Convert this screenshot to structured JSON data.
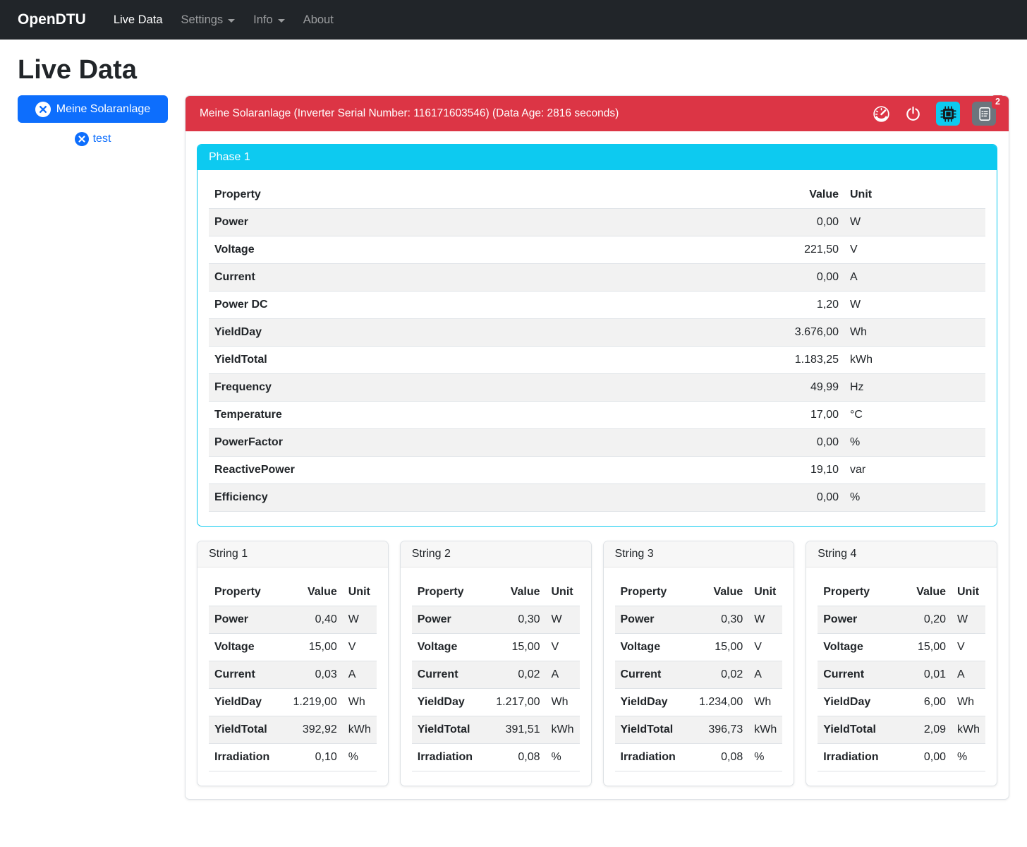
{
  "navbar": {
    "brand": "OpenDTU",
    "items": [
      {
        "label": "Live Data",
        "active": true,
        "dropdown": false
      },
      {
        "label": "Settings",
        "active": false,
        "dropdown": true
      },
      {
        "label": "Info",
        "active": false,
        "dropdown": true
      },
      {
        "label": "About",
        "active": false,
        "dropdown": false
      }
    ]
  },
  "page_title": "Live Data",
  "sidebar": {
    "inverters": [
      {
        "label": "Meine Solaranlage"
      },
      {
        "label": "test"
      }
    ]
  },
  "inverter": {
    "header": "Meine Solaranlage (Inverter Serial Number: 116171603546) (Data Age: 2816 seconds)",
    "event_count": "2"
  },
  "table_columns": {
    "property": "Property",
    "value": "Value",
    "unit": "Unit"
  },
  "phase": {
    "title": "Phase 1",
    "rows": [
      {
        "property": "Power",
        "value": "0,00",
        "unit": "W"
      },
      {
        "property": "Voltage",
        "value": "221,50",
        "unit": "V"
      },
      {
        "property": "Current",
        "value": "0,00",
        "unit": "A"
      },
      {
        "property": "Power DC",
        "value": "1,20",
        "unit": "W"
      },
      {
        "property": "YieldDay",
        "value": "3.676,00",
        "unit": "Wh"
      },
      {
        "property": "YieldTotal",
        "value": "1.183,25",
        "unit": "kWh"
      },
      {
        "property": "Frequency",
        "value": "49,99",
        "unit": "Hz"
      },
      {
        "property": "Temperature",
        "value": "17,00",
        "unit": "°C"
      },
      {
        "property": "PowerFactor",
        "value": "0,00",
        "unit": "%"
      },
      {
        "property": "ReactivePower",
        "value": "19,10",
        "unit": "var"
      },
      {
        "property": "Efficiency",
        "value": "0,00",
        "unit": "%"
      }
    ]
  },
  "strings": [
    {
      "title": "String 1",
      "rows": [
        {
          "property": "Power",
          "value": "0,40",
          "unit": "W"
        },
        {
          "property": "Voltage",
          "value": "15,00",
          "unit": "V"
        },
        {
          "property": "Current",
          "value": "0,03",
          "unit": "A"
        },
        {
          "property": "YieldDay",
          "value": "1.219,00",
          "unit": "Wh"
        },
        {
          "property": "YieldTotal",
          "value": "392,92",
          "unit": "kWh"
        },
        {
          "property": "Irradiation",
          "value": "0,10",
          "unit": "%"
        }
      ]
    },
    {
      "title": "String 2",
      "rows": [
        {
          "property": "Power",
          "value": "0,30",
          "unit": "W"
        },
        {
          "property": "Voltage",
          "value": "15,00",
          "unit": "V"
        },
        {
          "property": "Current",
          "value": "0,02",
          "unit": "A"
        },
        {
          "property": "YieldDay",
          "value": "1.217,00",
          "unit": "Wh"
        },
        {
          "property": "YieldTotal",
          "value": "391,51",
          "unit": "kWh"
        },
        {
          "property": "Irradiation",
          "value": "0,08",
          "unit": "%"
        }
      ]
    },
    {
      "title": "String 3",
      "rows": [
        {
          "property": "Power",
          "value": "0,30",
          "unit": "W"
        },
        {
          "property": "Voltage",
          "value": "15,00",
          "unit": "V"
        },
        {
          "property": "Current",
          "value": "0,02",
          "unit": "A"
        },
        {
          "property": "YieldDay",
          "value": "1.234,00",
          "unit": "Wh"
        },
        {
          "property": "YieldTotal",
          "value": "396,73",
          "unit": "kWh"
        },
        {
          "property": "Irradiation",
          "value": "0,08",
          "unit": "%"
        }
      ]
    },
    {
      "title": "String 4",
      "rows": [
        {
          "property": "Power",
          "value": "0,20",
          "unit": "W"
        },
        {
          "property": "Voltage",
          "value": "15,00",
          "unit": "V"
        },
        {
          "property": "Current",
          "value": "0,01",
          "unit": "A"
        },
        {
          "property": "YieldDay",
          "value": "6,00",
          "unit": "Wh"
        },
        {
          "property": "YieldTotal",
          "value": "2,09",
          "unit": "kWh"
        },
        {
          "property": "Irradiation",
          "value": "0,00",
          "unit": "%"
        }
      ]
    }
  ],
  "colors": {
    "navbar": "#212529",
    "primary": "#0d6efd",
    "danger": "#dc3545",
    "info": "#0dcaf0",
    "secondary": "#6c757d"
  }
}
